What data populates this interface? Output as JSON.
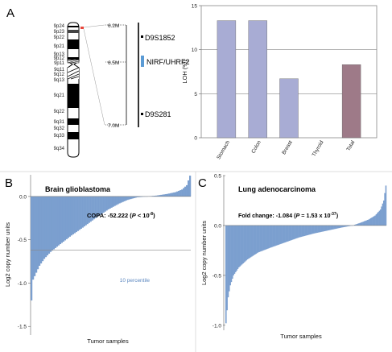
{
  "panels": {
    "a": {
      "letter": "A"
    },
    "b": {
      "letter": "B"
    },
    "c": {
      "letter": "C"
    }
  },
  "ideogram": {
    "bands": [
      "9p24",
      "9p23",
      "9p22",
      "9p21",
      "9p13",
      "9p12",
      "9p11",
      "9q11",
      "9q12",
      "9q13",
      "9q21",
      "9q22",
      "9q31",
      "9q32",
      "9q33",
      "9q34"
    ],
    "scale_labels": [
      "6.2M",
      "6.5M",
      "7.0M"
    ],
    "genes": [
      {
        "name": "D9S1852"
      },
      {
        "name": "NIRF/UHRF2",
        "color": "#5b9bd5"
      },
      {
        "name": "D9S281"
      }
    ],
    "highlight_color": "#e8463c"
  },
  "chart_data": [
    {
      "id": "loh",
      "type": "bar",
      "title": "",
      "ylabel": "LOH (%)",
      "xlabel": "",
      "categories": [
        "Stomach",
        "Colon",
        "Breast",
        "Thyroid",
        "Total"
      ],
      "values": [
        13.3,
        13.3,
        6.7,
        0,
        8.3
      ],
      "colors": [
        "#a8acd4",
        "#a8acd4",
        "#a8acd4",
        "#a8acd4",
        "#9e7a88"
      ],
      "ylim": [
        0,
        15
      ],
      "yticks": [
        0,
        5,
        10,
        15
      ],
      "grid": true
    },
    {
      "id": "glioblastoma",
      "type": "bar",
      "title": "Brain glioblastoma",
      "annotation": {
        "prefix": "COPA: -52.222 (",
        "p": "P",
        "rest": " < 10",
        "exp": "-8",
        "suffix": ")"
      },
      "threshold_label": "10 percentile",
      "threshold_value": -0.62,
      "ylabel": "Log2 copy number units",
      "xlabel": "Tumor samples",
      "ylim": [
        -1.6,
        0.25
      ],
      "yticks": [
        0.0,
        -0.5,
        -1.0,
        -1.5
      ],
      "ytick_labels": [
        "0.0",
        "-0.5",
        "-1.0",
        "-1.5"
      ],
      "color": "#7b9fcf",
      "n_samples": 100,
      "sorted_profile": [
        [
          0,
          -1.2
        ],
        [
          1,
          -0.96
        ],
        [
          3,
          -0.88
        ],
        [
          5,
          -0.8
        ],
        [
          8,
          -0.72
        ],
        [
          12,
          -0.64
        ],
        [
          18,
          -0.55
        ],
        [
          25,
          -0.45
        ],
        [
          32,
          -0.36
        ],
        [
          40,
          -0.25
        ],
        [
          48,
          -0.15
        ],
        [
          55,
          -0.08
        ],
        [
          60,
          -0.04
        ],
        [
          66,
          -0.01
        ],
        [
          72,
          0.0
        ],
        [
          78,
          0.01
        ],
        [
          85,
          0.03
        ],
        [
          90,
          0.05
        ],
        [
          94,
          0.08
        ],
        [
          97,
          0.13
        ],
        [
          99,
          0.24
        ]
      ]
    },
    {
      "id": "lung",
      "type": "bar",
      "title": "Lung adenocarcinoma",
      "annotation": {
        "prefix": "Fold change: -1.084 (",
        "p": "P",
        "rest": " = 1.53 x 10",
        "exp": "-37",
        "suffix": ")"
      },
      "ylabel": "Log2 copy number units",
      "xlabel": "Tumor samples",
      "ylim": [
        -1.05,
        0.5
      ],
      "yticks": [
        0.5,
        0.0,
        -0.5,
        -1.0
      ],
      "ytick_labels": [
        "0.5",
        "0.0",
        "-0.5",
        "-1.0"
      ],
      "color": "#7b9fcf",
      "n_samples": 150,
      "sorted_profile": [
        [
          0,
          -0.98
        ],
        [
          1,
          -0.85
        ],
        [
          2,
          -0.72
        ],
        [
          4,
          -0.6
        ],
        [
          7,
          -0.5
        ],
        [
          12,
          -0.42
        ],
        [
          20,
          -0.34
        ],
        [
          30,
          -0.27
        ],
        [
          42,
          -0.22
        ],
        [
          55,
          -0.17
        ],
        [
          68,
          -0.12
        ],
        [
          82,
          -0.08
        ],
        [
          95,
          -0.05
        ],
        [
          108,
          -0.02
        ],
        [
          118,
          0.0
        ],
        [
          126,
          0.03
        ],
        [
          133,
          0.06
        ],
        [
          139,
          0.1
        ],
        [
          144,
          0.16
        ],
        [
          147,
          0.25
        ],
        [
          149,
          0.4
        ]
      ]
    }
  ]
}
